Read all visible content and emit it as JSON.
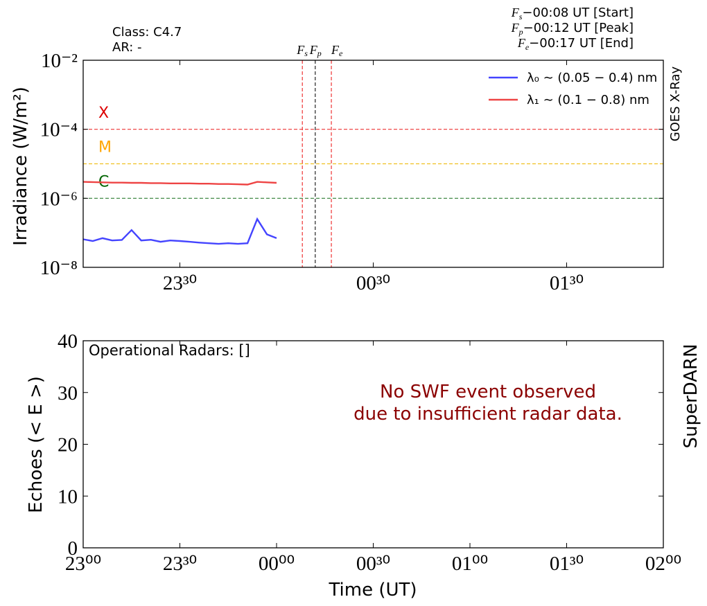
{
  "chart_data": [
    {
      "type": "line",
      "log_y": true,
      "legend": "upper right",
      "ylabel": "Irradiance (W/m²)",
      "side_label": "GOES X-Ray",
      "class_text": "Class:  C4.7",
      "ar_text": "AR: -",
      "xlim": [
        "23:00",
        "02:00"
      ],
      "xticks": [
        {
          "value": "23:30",
          "label": "23³⁰"
        },
        {
          "value": "00:30",
          "label": "00³⁰"
        },
        {
          "value": "01:30",
          "label": "01³⁰"
        }
      ],
      "ylim": [
        1e-08,
        0.01
      ],
      "yticks": [
        {
          "value": 1e-08,
          "label": "10⁻⁸"
        },
        {
          "value": 1e-06,
          "label": "10⁻⁶"
        },
        {
          "value": 0.0001,
          "label": "10⁻⁴"
        },
        {
          "value": 0.01,
          "label": "10⁻²"
        }
      ],
      "x": [
        "23:00",
        "23:03",
        "23:06",
        "23:09",
        "23:12",
        "23:15",
        "23:18",
        "23:21",
        "23:24",
        "23:27",
        "23:30",
        "23:33",
        "23:36",
        "23:39",
        "23:42",
        "23:45",
        "23:48",
        "23:51",
        "23:54",
        "23:57",
        "00:00"
      ],
      "series": [
        {
          "name": "λ₀ ∼ (0.05 − 0.4) nm",
          "color": "#4444ff",
          "values": [
            6.5e-08,
            5.8e-08,
            7e-08,
            6e-08,
            6.2e-08,
            1.2e-07,
            6e-08,
            6.3e-08,
            5.5e-08,
            6e-08,
            5.8e-08,
            5.5e-08,
            5.2e-08,
            5e-08,
            4.8e-08,
            5e-08,
            4.8e-08,
            5e-08,
            2.5e-07,
            9e-08,
            7e-08
          ]
        },
        {
          "name": "λ₁ ∼ (0.1 − 0.8) nm",
          "color": "#ee4444",
          "values": [
            3e-06,
            2.95e-06,
            2.9e-06,
            2.85e-06,
            2.85e-06,
            2.8e-06,
            2.8e-06,
            2.75e-06,
            2.75e-06,
            2.7e-06,
            2.7e-06,
            2.7e-06,
            2.65e-06,
            2.65e-06,
            2.6e-06,
            2.6e-06,
            2.55e-06,
            2.5e-06,
            3e-06,
            2.9e-06,
            2.8e-06
          ]
        }
      ],
      "thresholds": [
        {
          "label": "X",
          "value": 0.0001,
          "color": "#ee3333",
          "label_color": "#dd0000"
        },
        {
          "label": "M",
          "value": 1e-05,
          "color": "#f0c020",
          "label_color": "#ffa500"
        },
        {
          "label": "C",
          "value": 1e-06,
          "color": "#2e7d32",
          "label_color": "#006400"
        }
      ],
      "markers": [
        {
          "symbol": "F",
          "sub": "s",
          "time": "00:08",
          "note": "−00:08 UT [Start]",
          "color": "#ee3333"
        },
        {
          "symbol": "F",
          "sub": "p",
          "time": "00:12",
          "note": "−00:12 UT [Peak]",
          "color": "#222222"
        },
        {
          "symbol": "F",
          "sub": "e",
          "time": "00:17",
          "note": "−00:17 UT [End]",
          "color": "#ee3333"
        }
      ]
    },
    {
      "type": "line",
      "log_y": false,
      "ylabel": "Echoes (< E >)",
      "xlabel": "Time (UT)",
      "side_label": "SuperDARN",
      "radars_text": "Operational Radars: []",
      "annotation": [
        "No SWF event observed",
        "due to insufficient radar data."
      ],
      "annotation_color": "#8b0000",
      "xlim": [
        "23:00",
        "02:00"
      ],
      "xticks": [
        {
          "value": "23:00",
          "label": "23⁰⁰"
        },
        {
          "value": "23:30",
          "label": "23³⁰"
        },
        {
          "value": "00:00",
          "label": "00⁰⁰"
        },
        {
          "value": "00:30",
          "label": "00³⁰"
        },
        {
          "value": "01:00",
          "label": "01⁰⁰"
        },
        {
          "value": "01:30",
          "label": "01³⁰"
        },
        {
          "value": "02:00",
          "label": "02⁰⁰"
        }
      ],
      "ylim": [
        0,
        40
      ],
      "yticks": [
        0,
        10,
        20,
        30,
        40
      ],
      "x": [],
      "series": []
    }
  ]
}
